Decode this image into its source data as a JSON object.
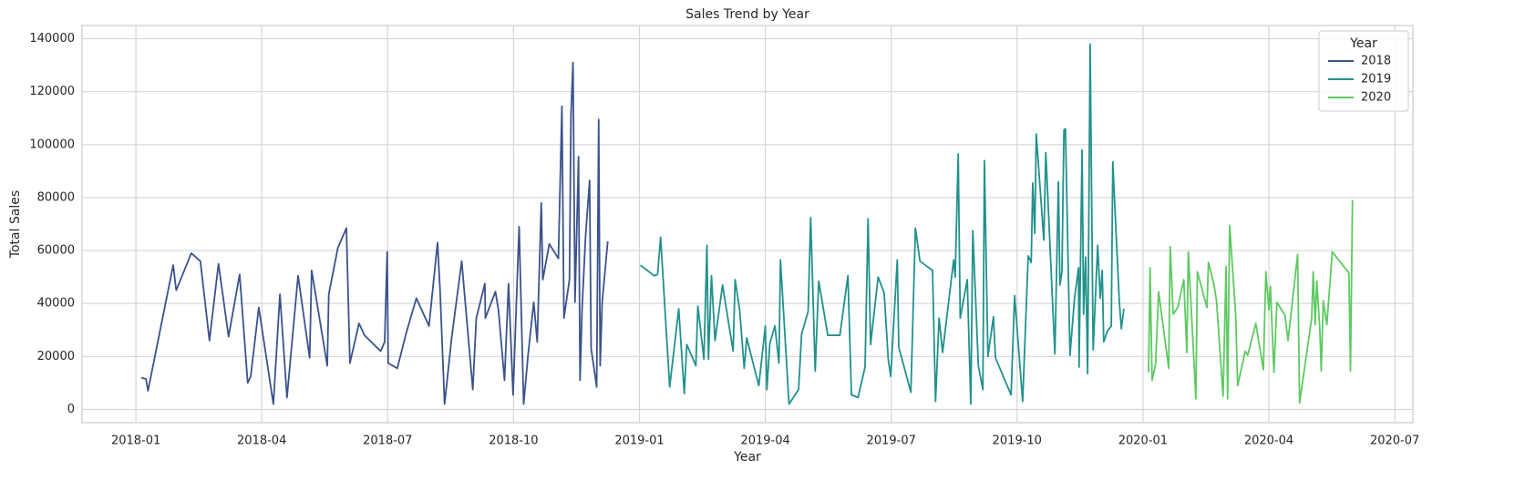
{
  "chart_data": {
    "type": "line",
    "title": "Sales Trend by Year",
    "x_label": "Year",
    "y_label": "Total Sales",
    "legend_title": "Year",
    "legend": "upper right",
    "grid": true,
    "xlim": [
      2017.893,
      2020.536
    ],
    "ylim": [
      -5000,
      145000
    ],
    "xticks": [
      {
        "value": 2018.0,
        "label": "2018-01"
      },
      {
        "value": 2018.25,
        "label": "2018-04"
      },
      {
        "value": 2018.5,
        "label": "2018-07"
      },
      {
        "value": 2018.75,
        "label": "2018-10"
      },
      {
        "value": 2019.0,
        "label": "2019-01"
      },
      {
        "value": 2019.25,
        "label": "2019-04"
      },
      {
        "value": 2019.5,
        "label": "2019-07"
      },
      {
        "value": 2019.75,
        "label": "2019-10"
      },
      {
        "value": 2020.0,
        "label": "2020-01"
      },
      {
        "value": 2020.25,
        "label": "2020-04"
      },
      {
        "value": 2020.5,
        "label": "2020-07"
      }
    ],
    "yticks": [
      0,
      20000,
      40000,
      60000,
      80000,
      100000,
      120000,
      140000
    ],
    "series": [
      {
        "name": "2018",
        "color": "#3b528b",
        "x": [
          2018.011,
          2018.02,
          2018.024,
          2018.074,
          2018.08,
          2018.11,
          2018.128,
          2018.146,
          2018.164,
          2018.184,
          2018.206,
          2018.222,
          2018.228,
          2018.244,
          2018.273,
          2018.286,
          2018.3,
          2018.322,
          2018.345,
          2018.349,
          2018.38,
          2018.383,
          2018.401,
          2018.418,
          2018.425,
          2018.443,
          2018.454,
          2018.486,
          2018.494,
          2018.499,
          2018.501,
          2018.519,
          2018.537,
          2018.557,
          2018.582,
          2018.599,
          2018.604,
          2018.613,
          2018.627,
          2018.647,
          2018.669,
          2018.676,
          2018.693,
          2018.694,
          2018.714,
          2018.72,
          2018.732,
          2018.74,
          2018.749,
          2018.761,
          2018.77,
          2018.779,
          2018.79,
          2018.797,
          2018.805,
          2018.808,
          2018.821,
          2018.839,
          2018.846,
          2018.85,
          2018.861,
          2018.864,
          2018.868,
          2018.872,
          2018.879,
          2018.882,
          2018.886,
          2018.893,
          2018.901,
          2018.904,
          2018.915,
          2018.919,
          2018.922,
          2018.926,
          2018.937
        ],
        "values": [
          12000,
          11500,
          7000,
          54500,
          45000,
          59000,
          56000,
          26000,
          55000,
          27500,
          51000,
          10000,
          12500,
          38500,
          2000,
          43500,
          4500,
          50500,
          19500,
          52500,
          16500,
          43500,
          61000,
          68500,
          17500,
          32500,
          28000,
          22000,
          25500,
          59500,
          17500,
          15500,
          29000,
          42000,
          31500,
          63000,
          45000,
          2000,
          27000,
          56000,
          7500,
          34500,
          47500,
          34500,
          44500,
          37500,
          11000,
          47500,
          5500,
          69000,
          2000,
          21000,
          40500,
          25500,
          78000,
          49000,
          62500,
          57000,
          114500,
          34500,
          49000,
          111500,
          131000,
          40500,
          95500,
          11000,
          38000,
          65500,
          86500,
          23000,
          8500,
          109500,
          16500,
          40500,
          63500
        ]
      },
      {
        "name": "2019",
        "color": "#21918c",
        "x": [
          2019.002,
          2019.029,
          2019.036,
          2019.042,
          2019.06,
          2019.078,
          2019.089,
          2019.094,
          2019.112,
          2019.116,
          2019.128,
          2019.134,
          2019.137,
          2019.143,
          2019.15,
          2019.165,
          2019.186,
          2019.19,
          2019.199,
          2019.208,
          2019.213,
          2019.237,
          2019.25,
          2019.253,
          2019.259,
          2019.269,
          2019.277,
          2019.28,
          2019.297,
          2019.316,
          2019.322,
          2019.335,
          2019.34,
          2019.349,
          2019.356,
          2019.374,
          2019.398,
          2019.414,
          2019.421,
          2019.434,
          2019.448,
          2019.454,
          2019.459,
          2019.474,
          2019.486,
          2019.494,
          2019.499,
          2019.512,
          2019.515,
          2019.539,
          2019.548,
          2019.557,
          2019.582,
          2019.588,
          2019.595,
          2019.602,
          2019.624,
          2019.627,
          2019.633,
          2019.637,
          2019.651,
          2019.658,
          2019.662,
          2019.673,
          2019.682,
          2019.685,
          2019.692,
          2019.703,
          2019.707,
          2019.738,
          2019.745,
          2019.761,
          2019.772,
          2019.778,
          2019.781,
          2019.785,
          2019.788,
          2019.803,
          2019.807,
          2019.825,
          2019.832,
          2019.835,
          2019.839,
          2019.843,
          2019.846,
          2019.855,
          2019.864,
          2019.872,
          2019.873,
          2019.879,
          2019.882,
          2019.886,
          2019.89,
          2019.895,
          2019.901,
          2019.91,
          2019.915,
          2019.919,
          2019.922,
          2019.929,
          2019.937,
          2019.94,
          2019.953,
          2019.957,
          2019.962
        ],
        "values": [
          54500,
          50500,
          51000,
          65000,
          8500,
          38000,
          6000,
          24500,
          16500,
          39000,
          19000,
          62000,
          19000,
          50500,
          26000,
          47000,
          22000,
          49000,
          37500,
          15500,
          27000,
          9000,
          31500,
          7500,
          25000,
          31500,
          17500,
          56500,
          2000,
          7500,
          28500,
          37000,
          72500,
          14500,
          48500,
          28000,
          28000,
          50500,
          5500,
          4500,
          16000,
          72000,
          24500,
          50000,
          44000,
          19000,
          12500,
          56500,
          23500,
          6500,
          68500,
          56000,
          52500,
          3000,
          34500,
          21500,
          56500,
          50000,
          96500,
          34500,
          49000,
          2000,
          67500,
          16500,
          7500,
          94000,
          20000,
          35000,
          19500,
          5500,
          43000,
          3000,
          58000,
          55500,
          85500,
          66500,
          104000,
          64000,
          97000,
          21000,
          86000,
          47000,
          52000,
          105500,
          106000,
          20500,
          42000,
          53500,
          16000,
          98000,
          36000,
          57500,
          13500,
          138000,
          22500,
          62000,
          42000,
          52500,
          25500,
          29500,
          31500,
          93500,
          40500,
          30500,
          38000
        ]
      },
      {
        "name": "2020",
        "color": "#5ec962",
        "x": [
          2020.011,
          2020.014,
          2020.018,
          2020.025,
          2020.031,
          2020.051,
          2020.054,
          2020.06,
          2020.069,
          2020.081,
          2020.087,
          2020.09,
          2020.105,
          2020.108,
          2020.127,
          2020.13,
          2020.141,
          2020.146,
          2020.159,
          2020.165,
          2020.168,
          2020.172,
          2020.184,
          2020.188,
          2020.203,
          2020.208,
          2020.224,
          2020.239,
          2020.244,
          2020.25,
          2020.253,
          2020.26,
          2020.266,
          2020.282,
          2020.288,
          2020.307,
          2020.311,
          2020.335,
          2020.338,
          2020.342,
          2020.345,
          2020.351,
          2020.354,
          2020.358,
          2020.365,
          2020.376,
          2020.409,
          2020.412,
          2020.416
        ],
        "values": [
          14000,
          53500,
          11000,
          17000,
          44500,
          15500,
          61500,
          36000,
          38500,
          49000,
          21500,
          59500,
          4000,
          52000,
          38500,
          55500,
          47000,
          41000,
          5000,
          54000,
          4000,
          69500,
          36000,
          9000,
          22000,
          20500,
          32500,
          15000,
          52000,
          37500,
          46500,
          14000,
          40500,
          35500,
          26000,
          58500,
          2500,
          34500,
          52000,
          32000,
          48500,
          31000,
          14500,
          41000,
          32000,
          59500,
          51500,
          14500,
          79000
        ]
      }
    ]
  }
}
